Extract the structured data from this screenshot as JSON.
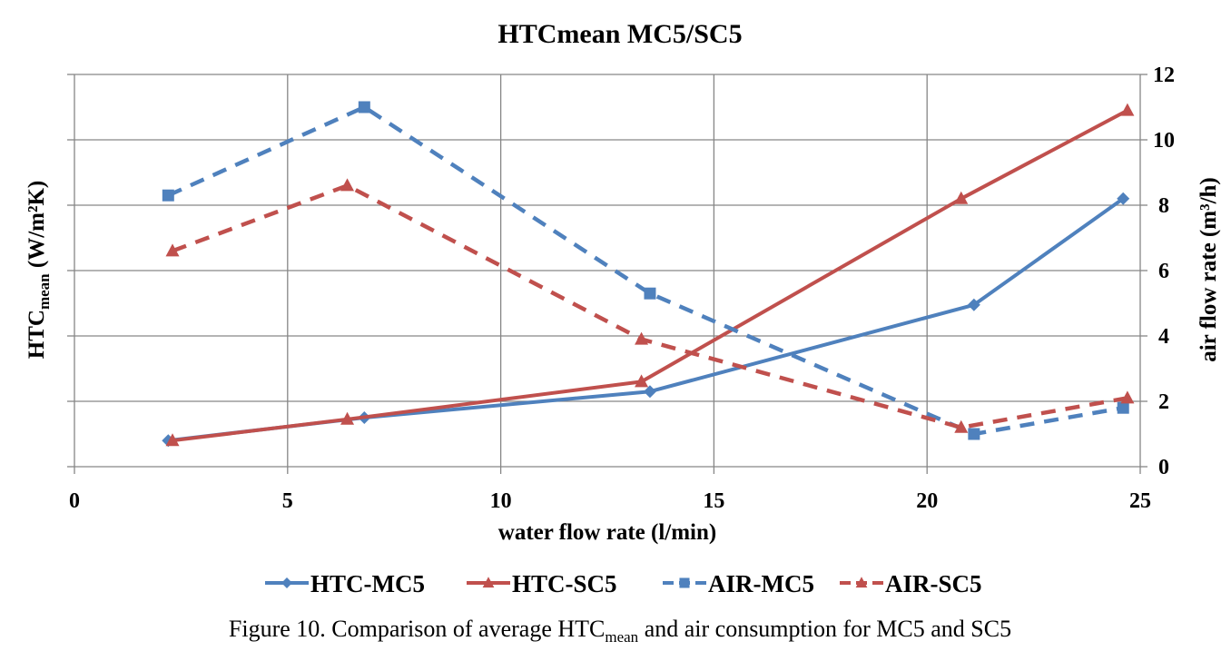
{
  "chart_data": {
    "type": "line",
    "title": "HTCmean MC5/SC5",
    "xlabel": "water flow rate (l/min)",
    "ylabel_left": {
      "main": "HTC",
      "sub": "mean",
      "units": " (W/m²K)"
    },
    "ylabel_right": "air flow rate (m³/h)",
    "xlim": [
      0,
      25
    ],
    "x_ticks": [
      "0",
      "5",
      "10",
      "15",
      "20",
      "25"
    ],
    "y_left_ticks_labeled": false,
    "y_right_lim": [
      0,
      12
    ],
    "y_right_ticks": [
      "0",
      "2",
      "4",
      "6",
      "8",
      "10",
      "12"
    ],
    "grid": true,
    "legend_position": "bottom",
    "series": [
      {
        "name": "HTC-MC5",
        "axis": "left",
        "style": "solid",
        "marker": "diamond",
        "color": "#4F81BD",
        "x": [
          2.2,
          6.8,
          13.5,
          21.1,
          24.6
        ],
        "y": [
          0.8,
          1.5,
          2.3,
          4.95,
          8.2
        ]
      },
      {
        "name": "HTC-SC5",
        "axis": "left",
        "style": "solid",
        "marker": "triangle",
        "color": "#C0504D",
        "x": [
          2.3,
          6.4,
          13.3,
          20.8,
          24.7
        ],
        "y": [
          0.8,
          1.45,
          2.6,
          8.2,
          10.9
        ]
      },
      {
        "name": "AIR-MC5",
        "axis": "right",
        "style": "dashed",
        "marker": "square",
        "color": "#4F81BD",
        "x": [
          2.2,
          6.8,
          13.5,
          21.1,
          24.6
        ],
        "y": [
          8.3,
          11.0,
          5.3,
          1.0,
          1.8
        ]
      },
      {
        "name": "AIR-SC5",
        "axis": "right",
        "style": "dashed",
        "marker": "triangle",
        "color": "#C0504D",
        "x": [
          2.3,
          6.4,
          13.3,
          20.8,
          24.7
        ],
        "y": [
          6.6,
          8.6,
          3.9,
          1.2,
          2.1
        ]
      }
    ]
  },
  "caption": {
    "prefix": "Figure 10. Comparison of average HTC",
    "sub": "mean",
    "suffix": " and air consumption for MC5 and SC5"
  }
}
